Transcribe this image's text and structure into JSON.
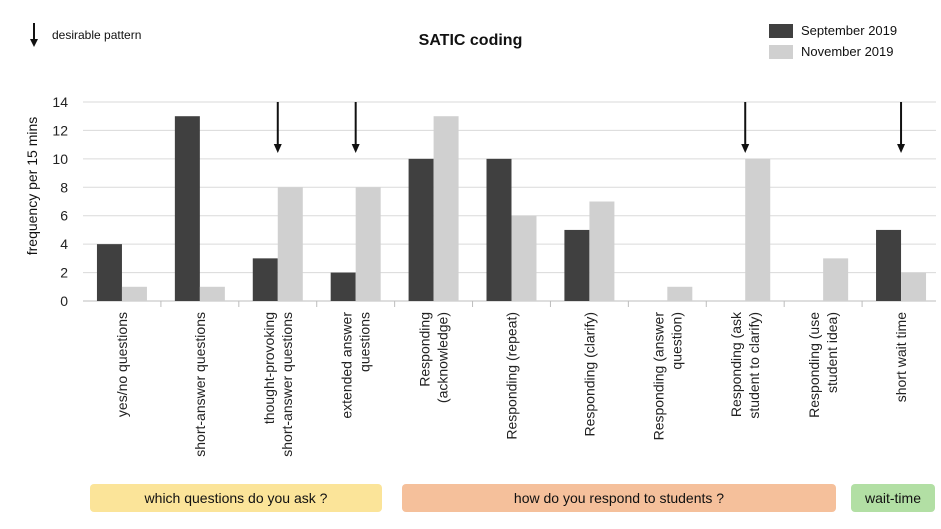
{
  "chart_data": {
    "type": "bar",
    "title": "SATIC coding",
    "ylabel": "frequency per 15 mins",
    "xlabel": "",
    "ylim": [
      0,
      14
    ],
    "yticks": [
      0,
      2,
      4,
      6,
      8,
      10,
      12,
      14
    ],
    "grid": true,
    "legend_position": "top-right",
    "categories": [
      "yes/no questions",
      "short-answer questions",
      "thought-provoking short-answer questions",
      "extended answer questions",
      "Responding (acknowledge)",
      "Responding (repeat)",
      "Responding (clarify)",
      "Responding (answer question)",
      "Responding (ask student to clarify)",
      "Responding (use student idea)",
      "short wait time"
    ],
    "category_label_lines": [
      [
        "yes/no questions"
      ],
      [
        "short-answer questions"
      ],
      [
        "thought-provoking",
        "short-answer questions"
      ],
      [
        "extended answer",
        "questions"
      ],
      [
        "Responding",
        "(acknowledge)"
      ],
      [
        "Responding (repeat)"
      ],
      [
        "Responding (clarify)"
      ],
      [
        "Responding (answer",
        "question)"
      ],
      [
        "Responding (ask",
        "student to clarify)"
      ],
      [
        "Responding (use",
        "student idea)"
      ],
      [
        "short wait time"
      ]
    ],
    "series": [
      {
        "name": "September 2019",
        "color": "#404040",
        "values": [
          4,
          13,
          3,
          2,
          10,
          10,
          5,
          0,
          0,
          0,
          5
        ]
      },
      {
        "name": "November 2019",
        "color": "#d0d0d0",
        "values": [
          1,
          1,
          8,
          8,
          13,
          6,
          7,
          1,
          10,
          3,
          2
        ]
      }
    ],
    "desirable_arrow_categories": [
      2,
      3,
      8,
      10
    ],
    "annotation": "desirable pattern",
    "groups": [
      {
        "label": "which questions do you ask ?",
        "start": 0,
        "end": 3,
        "color": "#fbe499"
      },
      {
        "label": "how do you respond to students ?",
        "start": 4,
        "end": 9,
        "color": "#f5c09b"
      },
      {
        "label": "wait-time",
        "start": 10,
        "end": 10,
        "color": "#b2dfa4"
      }
    ]
  }
}
